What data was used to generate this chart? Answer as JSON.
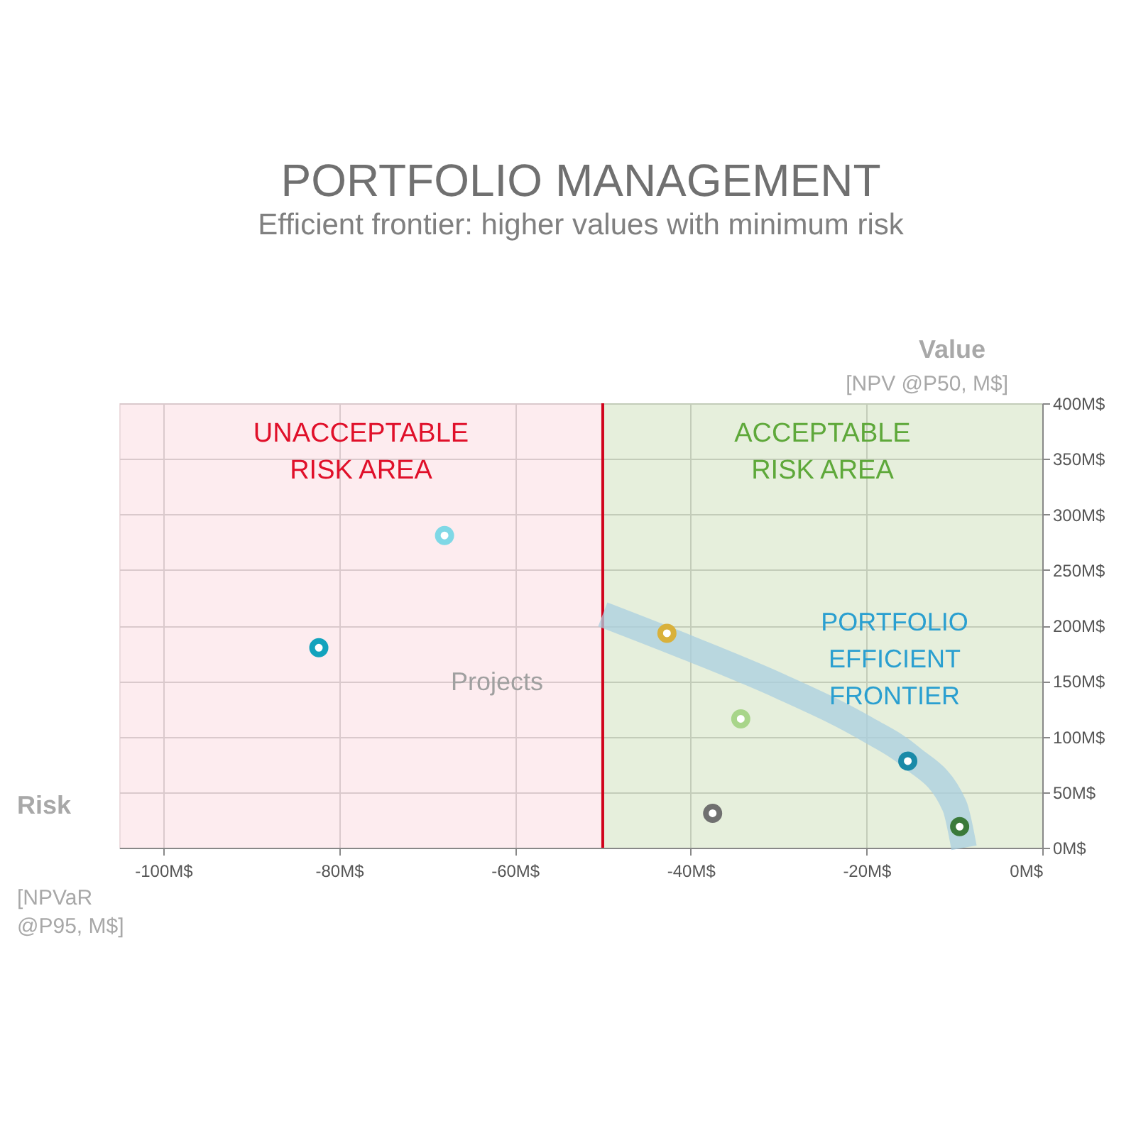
{
  "chart_data": {
    "type": "scatter",
    "title": "PORTFOLIO MANAGEMENT",
    "subtitle": "Efficient frontier: higher values with minimum risk",
    "xlabel": "Risk\n[NPVaR\n@P95, M$]",
    "ylabel": "Value\n[NPV @P50, M$]",
    "series": [
      {
        "type": "scatter",
        "marker": "circle",
        "x": [
          -68,
          -82.3,
          -42.7,
          -34.3,
          -37.5,
          -15.3,
          -9.4
        ],
        "values": [
          281,
          180,
          193,
          116,
          31,
          78,
          19
        ],
        "colors": [
          "#7fd8e6",
          "#12a3bd",
          "#d9b13b",
          "#a8d58a",
          "#707070",
          "#1a8aa8",
          "#3b7a3a"
        ]
      },
      {
        "type": "line",
        "color": "#a9cfe0",
        "x": [
          -50,
          -40,
          -30,
          -20,
          -15,
          -10,
          -8.9
        ],
        "values": [
          210,
          179,
          146,
          107,
          82,
          38,
          0
        ]
      }
    ],
    "xlim": [
      -105,
      0
    ],
    "xticks": [
      {
        "value": -100,
        "label": "-100M$"
      },
      {
        "value": -80,
        "label": "-80M$"
      },
      {
        "value": -60,
        "label": "-60M$"
      },
      {
        "value": -40,
        "label": "-40M$"
      },
      {
        "value": -20,
        "label": "-20M$"
      },
      {
        "value": 0,
        "label": "0M$"
      }
    ],
    "ylim": [
      0,
      400
    ],
    "yticks": [
      {
        "value": 0,
        "label": "0M$"
      },
      {
        "value": 50,
        "label": "50M$"
      },
      {
        "value": 100,
        "label": "100M$"
      },
      {
        "value": 150,
        "label": "150M$"
      },
      {
        "value": 200,
        "label": "200M$"
      },
      {
        "value": 250,
        "label": "250M$"
      },
      {
        "value": 300,
        "label": "300M$"
      },
      {
        "value": 350,
        "label": "350M$"
      },
      {
        "value": 400,
        "label": "400M$"
      }
    ],
    "grid": true,
    "legend": false,
    "bands": [
      {
        "axis": "x",
        "from": -105,
        "to": -50,
        "label": "UNACCEPTABLE\nRISK AREA",
        "color": "#fbd9df"
      },
      {
        "axis": "x",
        "from": -50,
        "to": 0,
        "label": "ACCEPTABLE\nRISK AREA",
        "color": "#cddfb9"
      }
    ],
    "ref_lines": [
      {
        "axis": "x",
        "value": -50,
        "color": "#d0021b"
      }
    ],
    "annotations": [
      "Projects",
      "PORTFOLIO\nEFFICIENT\nFRONTIER"
    ]
  }
}
